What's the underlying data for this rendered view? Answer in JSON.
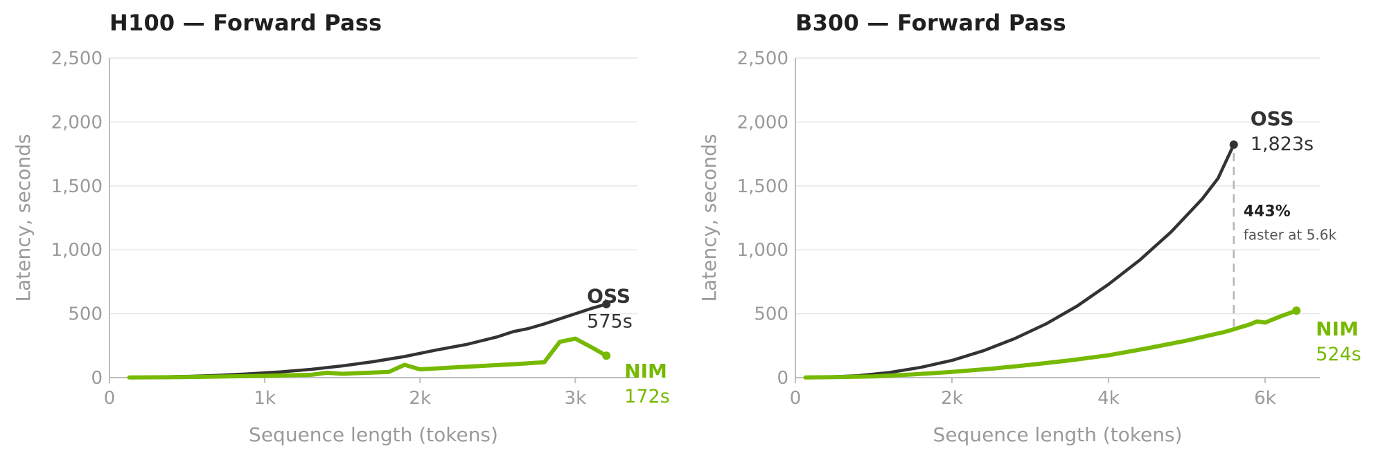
{
  "chart_data": [
    {
      "type": "line",
      "title": "H100 — Forward Pass",
      "xlabel": "Sequence length (tokens)",
      "ylabel": "Latency, seconds",
      "xlim": [
        0,
        3400
      ],
      "ylim": [
        0,
        2500
      ],
      "x_ticks": [
        0,
        1000,
        2000,
        3000
      ],
      "x_tick_labels": [
        "0",
        "1k",
        "2k",
        "3k"
      ],
      "y_ticks": [
        0,
        500,
        1000,
        1500,
        2000,
        2500
      ],
      "y_tick_labels": [
        "0",
        "500",
        "1,000",
        "1,500",
        "2,000",
        "2,500"
      ],
      "grid": "horizontal",
      "series": [
        {
          "name": "OSS",
          "color": "#333333",
          "end_label": "575s",
          "x": [
            128,
            300,
            500,
            700,
            900,
            1100,
            1300,
            1500,
            1700,
            1900,
            2100,
            2300,
            2500,
            2600,
            2700,
            2800,
            2900,
            3000,
            3100,
            3200
          ],
          "y": [
            2,
            5,
            10,
            18,
            30,
            45,
            65,
            92,
            125,
            165,
            215,
            260,
            320,
            360,
            385,
            420,
            460,
            500,
            540,
            575
          ]
        },
        {
          "name": "NIM",
          "color": "#76b900",
          "end_label": "172s",
          "x": [
            128,
            400,
            700,
            1000,
            1300,
            1400,
            1500,
            1600,
            1800,
            1900,
            2000,
            2300,
            2600,
            2800,
            2900,
            3000,
            3100,
            3200
          ],
          "y": [
            1,
            3,
            8,
            14,
            22,
            38,
            30,
            35,
            45,
            100,
            65,
            85,
            105,
            120,
            280,
            305,
            240,
            172
          ]
        }
      ]
    },
    {
      "type": "line",
      "title": "B300 — Forward Pass",
      "xlabel": "Sequence length (tokens)",
      "ylabel": "Latency, seconds",
      "xlim": [
        0,
        6700
      ],
      "ylim": [
        0,
        2500
      ],
      "x_ticks": [
        0,
        2000,
        4000,
        6000
      ],
      "x_tick_labels": [
        "0",
        "2k",
        "4k",
        "6k"
      ],
      "y_ticks": [
        0,
        500,
        1000,
        1500,
        2000,
        2500
      ],
      "y_tick_labels": [
        "0",
        "500",
        "1,000",
        "1,500",
        "2,000",
        "2,500"
      ],
      "grid": "horizontal",
      "annotation": {
        "percent": "443%",
        "note": "faster at 5.6k",
        "x": 5600
      },
      "series": [
        {
          "name": "OSS",
          "color": "#333333",
          "end_label": "1,823s",
          "x": [
            128,
            400,
            800,
            1200,
            1600,
            2000,
            2400,
            2800,
            3200,
            3600,
            4000,
            4400,
            4800,
            5200,
            5400,
            5600
          ],
          "y": [
            2,
            5,
            15,
            40,
            80,
            135,
            210,
            305,
            420,
            560,
            730,
            920,
            1140,
            1400,
            1560,
            1823
          ]
        },
        {
          "name": "NIM",
          "color": "#76b900",
          "end_label": "524s",
          "x": [
            128,
            500,
            1000,
            1500,
            2000,
            2500,
            3000,
            3500,
            4000,
            4500,
            5000,
            5500,
            5800,
            5900,
            6000,
            6200,
            6400
          ],
          "y": [
            1,
            4,
            10,
            25,
            45,
            70,
            100,
            135,
            175,
            230,
            290,
            360,
            415,
            440,
            430,
            480,
            524
          ]
        }
      ]
    }
  ]
}
